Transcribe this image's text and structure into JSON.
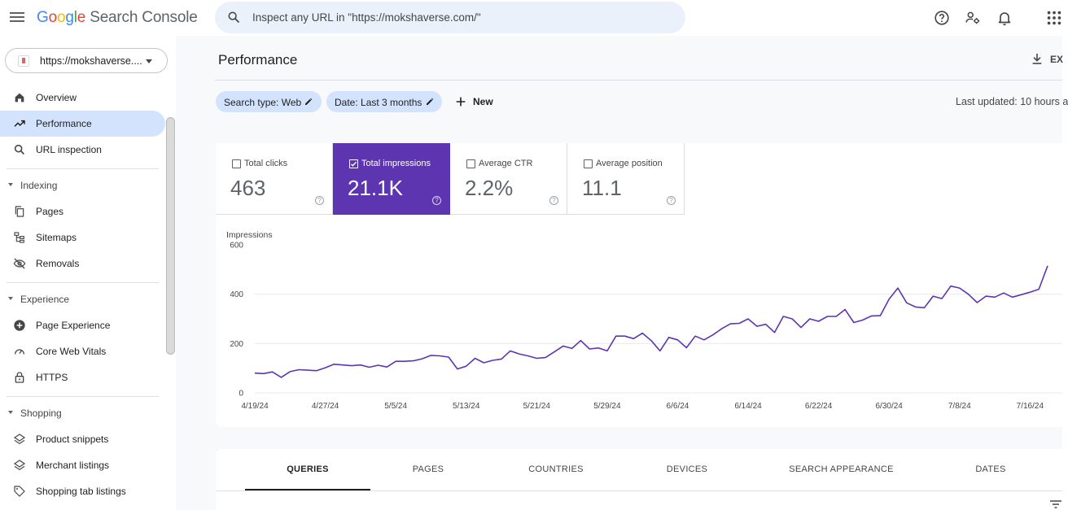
{
  "header": {
    "logo_letters": [
      "G",
      "o",
      "o",
      "g",
      "l",
      "e"
    ],
    "logo_product": "Search Console",
    "search_placeholder": "Inspect any URL in \"https://mokshaverse.com/\"",
    "icons": [
      "menu-icon",
      "search-icon",
      "help-icon",
      "manage-users-icon",
      "notifications-icon",
      "apps-icon"
    ]
  },
  "sidebar": {
    "property_label": "https://mokshaverse....",
    "top_items": [
      {
        "label": "Overview",
        "icon": "home-icon"
      },
      {
        "label": "Performance",
        "icon": "trending-up-icon",
        "active": true
      },
      {
        "label": "URL inspection",
        "icon": "search-icon"
      }
    ],
    "sections": [
      {
        "title": "Indexing",
        "items": [
          {
            "label": "Pages",
            "icon": "pages-icon"
          },
          {
            "label": "Sitemaps",
            "icon": "sitemap-icon"
          },
          {
            "label": "Removals",
            "icon": "visibility-off-icon"
          }
        ]
      },
      {
        "title": "Experience",
        "items": [
          {
            "label": "Page Experience",
            "icon": "add-circle-icon"
          },
          {
            "label": "Core Web Vitals",
            "icon": "speed-icon"
          },
          {
            "label": "HTTPS",
            "icon": "lock-icon"
          }
        ]
      },
      {
        "title": "Shopping",
        "items": [
          {
            "label": "Product snippets",
            "icon": "layers-icon"
          },
          {
            "label": "Merchant listings",
            "icon": "layers-icon"
          },
          {
            "label": "Shopping tab listings",
            "icon": "tag-icon"
          }
        ]
      }
    ]
  },
  "main": {
    "title": "Performance",
    "export_label": "EX",
    "filters": [
      {
        "label": "Search type: Web"
      },
      {
        "label": "Date: Last 3 months"
      }
    ],
    "new_label": "New",
    "last_updated": "Last updated: 10 hours a",
    "metrics": [
      {
        "label": "Total clicks",
        "value": "463",
        "checked": false
      },
      {
        "label": "Total impressions",
        "value": "21.1K",
        "checked": true
      },
      {
        "label": "Average CTR",
        "value": "2.2%",
        "checked": false
      },
      {
        "label": "Average position",
        "value": "11.1",
        "checked": false
      }
    ],
    "tabs": [
      "QUERIES",
      "PAGES",
      "COUNTRIES",
      "DEVICES",
      "SEARCH APPEARANCE",
      "DATES"
    ],
    "active_tab": "QUERIES"
  },
  "colors": {
    "accent": "#5e35b1",
    "chip_bg": "#d3e3fd",
    "search_bg": "#eaf1fb",
    "line": "#5e35b1"
  },
  "chart_data": {
    "type": "line",
    "ylabel": "Impressions",
    "ylim": [
      0,
      600
    ],
    "yticks": [
      0,
      200,
      400,
      600
    ],
    "grid": true,
    "x_tick_labels": [
      "4/19/24",
      "4/27/24",
      "5/5/24",
      "5/13/24",
      "5/21/24",
      "5/29/24",
      "6/6/24",
      "6/14/24",
      "6/22/24",
      "6/30/24",
      "7/8/24",
      "7/16/24"
    ],
    "x_tick_indices": [
      0,
      8,
      16,
      24,
      32,
      40,
      48,
      56,
      64,
      72,
      80,
      88
    ],
    "series": [
      {
        "values": [
          80,
          78,
          85,
          63,
          86,
          94,
          92,
          90,
          102,
          116,
          113,
          110,
          113,
          104,
          112,
          105,
          128,
          128,
          130,
          138,
          152,
          150,
          145,
          97,
          108,
          140,
          122,
          132,
          137,
          170,
          158,
          150,
          140,
          143,
          166,
          190,
          180,
          212,
          178,
          182,
          170,
          230,
          230,
          220,
          242,
          212,
          170,
          225,
          215,
          183,
          230,
          215,
          235,
          260,
          280,
          282,
          300,
          270,
          278,
          245,
          310,
          300,
          265,
          300,
          290,
          310,
          310,
          338,
          285,
          295,
          312,
          313,
          380,
          425,
          365,
          348,
          345,
          392,
          382,
          433,
          425,
          400,
          366,
          392,
          388,
          405,
          388,
          398,
          408,
          420,
          515
        ]
      }
    ]
  }
}
